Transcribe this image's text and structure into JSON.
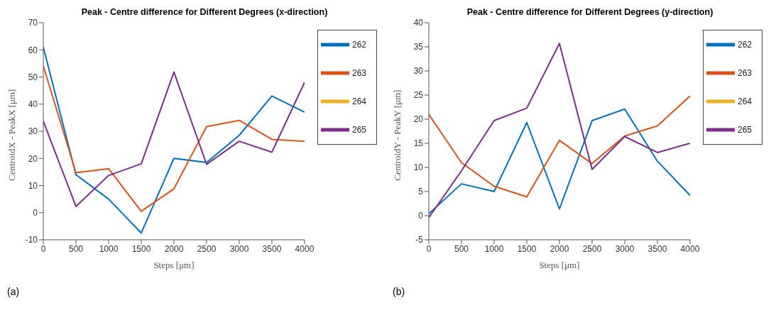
{
  "chart_data": [
    {
      "type": "line",
      "title": "Peak - Centre difference for Different Degrees (x-direction)",
      "xlabel": "Steps [μm]",
      "ylabel": "CentroidX - PeakX [μm]",
      "annotations": [
        "(a)"
      ],
      "x": [
        0,
        500,
        1000,
        1500,
        2000,
        2500,
        3000,
        3500,
        4000
      ],
      "xlim": [
        0,
        4000
      ],
      "xticks": [
        0,
        500,
        1000,
        1500,
        2000,
        2500,
        3000,
        3500,
        4000
      ],
      "ylim": [
        -10,
        70
      ],
      "yticks": [
        -10,
        0,
        10,
        20,
        30,
        40,
        50,
        60,
        70
      ],
      "grid": false,
      "legend": "top right",
      "marker": "none",
      "line_style": "solid",
      "series": [
        {
          "name": "262",
          "color": "#0072bd",
          "values": [
            61,
            14,
            5,
            -7.5,
            20,
            18.5,
            28.5,
            43,
            37
          ]
        },
        {
          "name": "263",
          "color": "#d95319",
          "values": [
            54,
            14.7,
            16.2,
            0.5,
            8.8,
            31.7,
            34,
            27,
            26.3
          ]
        },
        {
          "name": "264",
          "color": "#edb120",
          "values": [
            null,
            null,
            null,
            null,
            null,
            null,
            null,
            null,
            null
          ]
        },
        {
          "name": "265",
          "color": "#7e2f8e",
          "values": [
            33.7,
            2.3,
            13.7,
            18,
            51.8,
            17.8,
            26.3,
            22.3,
            48
          ]
        }
      ]
    },
    {
      "type": "line",
      "title": "Peak - Centre difference for Different Degrees (y-direction)",
      "xlabel": "Steps [μm]",
      "ylabel": "CentroidY - PeakY [μm]",
      "annotations": [
        "(b)"
      ],
      "x": [
        0,
        500,
        1000,
        1500,
        2000,
        2500,
        3000,
        3500,
        4000
      ],
      "xlim": [
        0,
        4000
      ],
      "xticks": [
        0,
        500,
        1000,
        1500,
        2000,
        2500,
        3000,
        3500,
        4000
      ],
      "ylim": [
        -5,
        40
      ],
      "yticks": [
        -5,
        0,
        5,
        10,
        15,
        20,
        25,
        30,
        35,
        40
      ],
      "grid": false,
      "legend": "top right",
      "marker": "none",
      "line_style": "solid",
      "series": [
        {
          "name": "262",
          "color": "#0072bd",
          "values": [
            0.4,
            6.6,
            5,
            19.3,
            1.4,
            19.7,
            22.1,
            11.3,
            4.2
          ]
        },
        {
          "name": "263",
          "color": "#d95319",
          "values": [
            21,
            11,
            6.1,
            3.9,
            15.6,
            10.8,
            16.5,
            18.6,
            24.8
          ]
        },
        {
          "name": "264",
          "color": "#edb120",
          "values": [
            null,
            null,
            null,
            null,
            null,
            null,
            null,
            null,
            null
          ]
        },
        {
          "name": "265",
          "color": "#7e2f8e",
          "values": [
            -0.4,
            9.3,
            19.7,
            22.3,
            35.7,
            9.6,
            16.4,
            13.1,
            15
          ]
        }
      ]
    }
  ]
}
